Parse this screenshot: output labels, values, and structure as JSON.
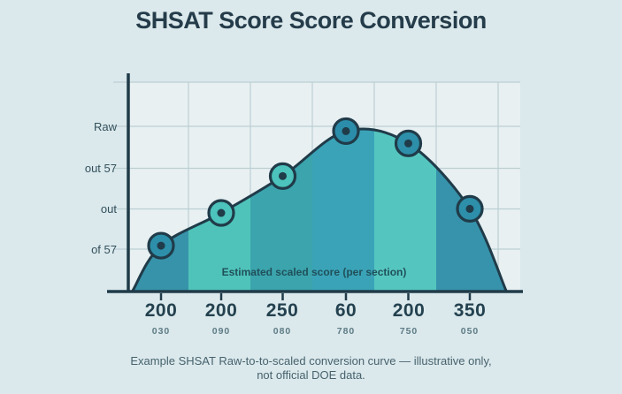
{
  "title": "SHSAT Score Score Conversion",
  "chart_data": {
    "type": "area",
    "title": "SHSAT Score Score Conversion",
    "y_axis_labels": [
      "Raw",
      "out 57",
      "out",
      "of 57"
    ],
    "x_tick_labels": [
      "200",
      "200",
      "250",
      "60",
      "200",
      "350"
    ],
    "x_tick_sublabels": [
      "030",
      "090",
      "080",
      "780",
      "750",
      "050"
    ],
    "values": [
      1.1,
      1.9,
      2.8,
      3.9,
      3.6,
      2.0
    ],
    "ylim": [
      0,
      5.1
    ],
    "grid": "on",
    "legend_position": "none",
    "annotation": "Estimated scaled score (per section)",
    "caption_line1": "Example SHSAT Raw-to-to-scaled conversion curve — illustrative only,",
    "caption_line2": "not official DOE data.",
    "marker_fills": [
      "#2d8fa9",
      "#4cc3bc",
      "#4cc3bc",
      "#2b8da9",
      "#2d8fa9",
      "#2d8fa9"
    ],
    "band_colors": [
      "#3793aa",
      "#4fc3b9",
      "#3ba4ad",
      "#3aa3b8",
      "#55c6bf",
      "#3793ab"
    ],
    "stroke_color": "#203b49",
    "colors": {
      "page_background": "#dbe9ec",
      "plot_background": "#e8f0f2",
      "gridline": "#bccfd4",
      "axis": "#203b49",
      "marker_dot": "#203b49"
    }
  }
}
